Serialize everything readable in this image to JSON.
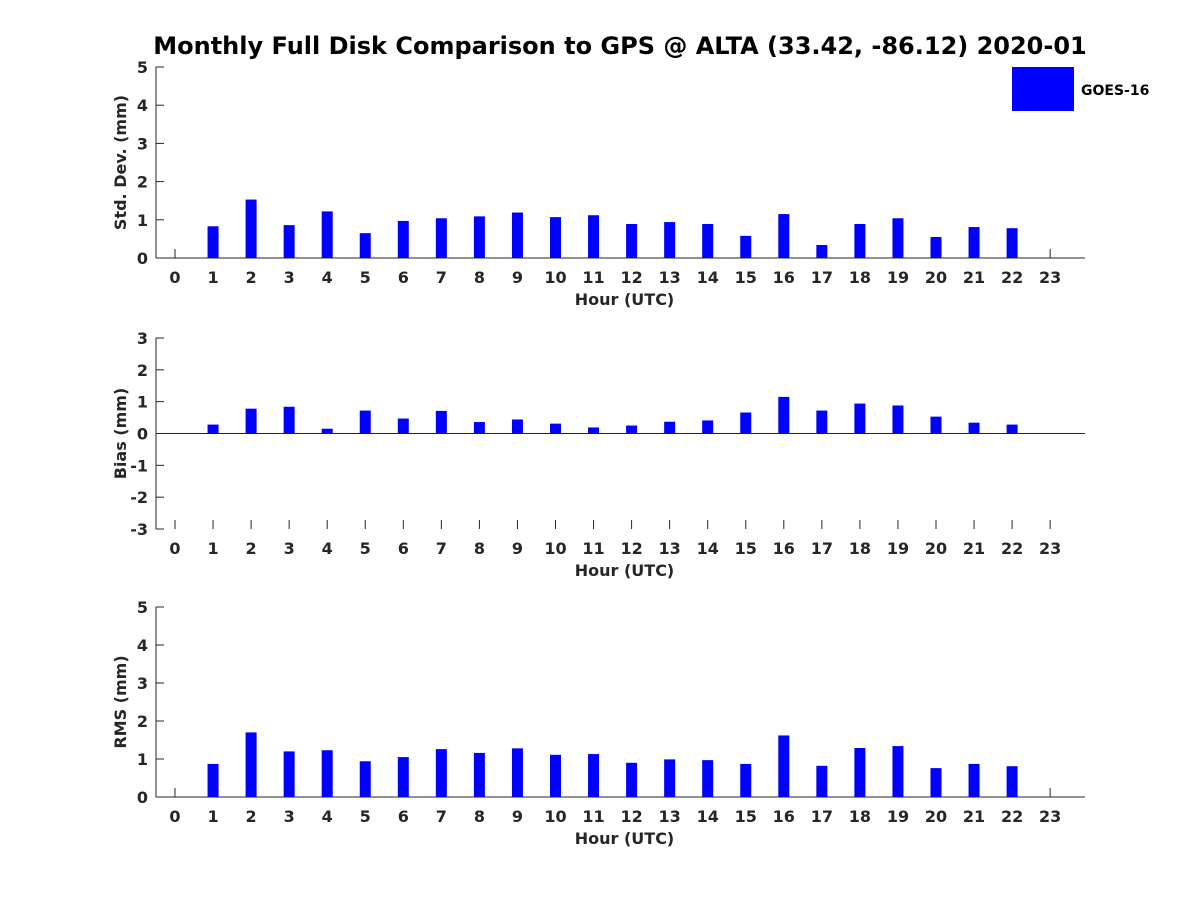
{
  "colors": {
    "bar": "#0000ff",
    "axis": "#262626",
    "text": "#262626"
  },
  "chart_data": [
    {
      "type": "bar",
      "title": "Monthly Full Disk Comparison to GPS @ ALTA (33.42, -86.12) 2020-01",
      "xlabel": "Hour (UTC)",
      "ylabel": "Std. Dev. (mm)",
      "ylim": [
        0,
        5
      ],
      "yticks": [
        0,
        1,
        2,
        3,
        4,
        5
      ],
      "categories": [
        0,
        1,
        2,
        3,
        4,
        5,
        6,
        7,
        8,
        9,
        10,
        11,
        12,
        13,
        14,
        15,
        16,
        17,
        18,
        19,
        20,
        21,
        22,
        23
      ],
      "legend": {
        "entries": [
          "GOES-16"
        ],
        "position": "top-right"
      },
      "series": [
        {
          "name": "GOES-16",
          "values": [
            null,
            0.83,
            1.53,
            0.86,
            1.22,
            0.65,
            0.97,
            1.04,
            1.09,
            1.19,
            1.07,
            1.12,
            0.89,
            0.94,
            0.89,
            0.58,
            1.15,
            0.34,
            0.89,
            1.04,
            0.55,
            0.81,
            0.78,
            null
          ]
        }
      ]
    },
    {
      "type": "bar",
      "xlabel": "Hour (UTC)",
      "ylabel": "Bias (mm)",
      "ylim": [
        -3,
        3
      ],
      "yticks": [
        -3,
        -2,
        -1,
        0,
        1,
        2,
        3
      ],
      "categories": [
        0,
        1,
        2,
        3,
        4,
        5,
        6,
        7,
        8,
        9,
        10,
        11,
        12,
        13,
        14,
        15,
        16,
        17,
        18,
        19,
        20,
        21,
        22,
        23
      ],
      "series": [
        {
          "name": "GOES-16",
          "values": [
            null,
            0.28,
            0.78,
            0.84,
            0.15,
            0.72,
            0.47,
            0.71,
            0.36,
            0.44,
            0.31,
            0.19,
            0.25,
            0.37,
            0.41,
            0.66,
            1.15,
            0.72,
            0.94,
            0.88,
            0.53,
            0.34,
            0.28,
            null
          ]
        }
      ]
    },
    {
      "type": "bar",
      "xlabel": "Hour (UTC)",
      "ylabel": "RMS (mm)",
      "ylim": [
        0,
        5
      ],
      "yticks": [
        0,
        1,
        2,
        3,
        4,
        5
      ],
      "categories": [
        0,
        1,
        2,
        3,
        4,
        5,
        6,
        7,
        8,
        9,
        10,
        11,
        12,
        13,
        14,
        15,
        16,
        17,
        18,
        19,
        20,
        21,
        22,
        23
      ],
      "series": [
        {
          "name": "GOES-16",
          "values": [
            null,
            0.87,
            1.7,
            1.2,
            1.23,
            0.94,
            1.05,
            1.26,
            1.16,
            1.28,
            1.11,
            1.13,
            0.9,
            0.99,
            0.97,
            0.87,
            1.62,
            0.82,
            1.29,
            1.34,
            0.76,
            0.87,
            0.81,
            null
          ]
        }
      ]
    }
  ]
}
